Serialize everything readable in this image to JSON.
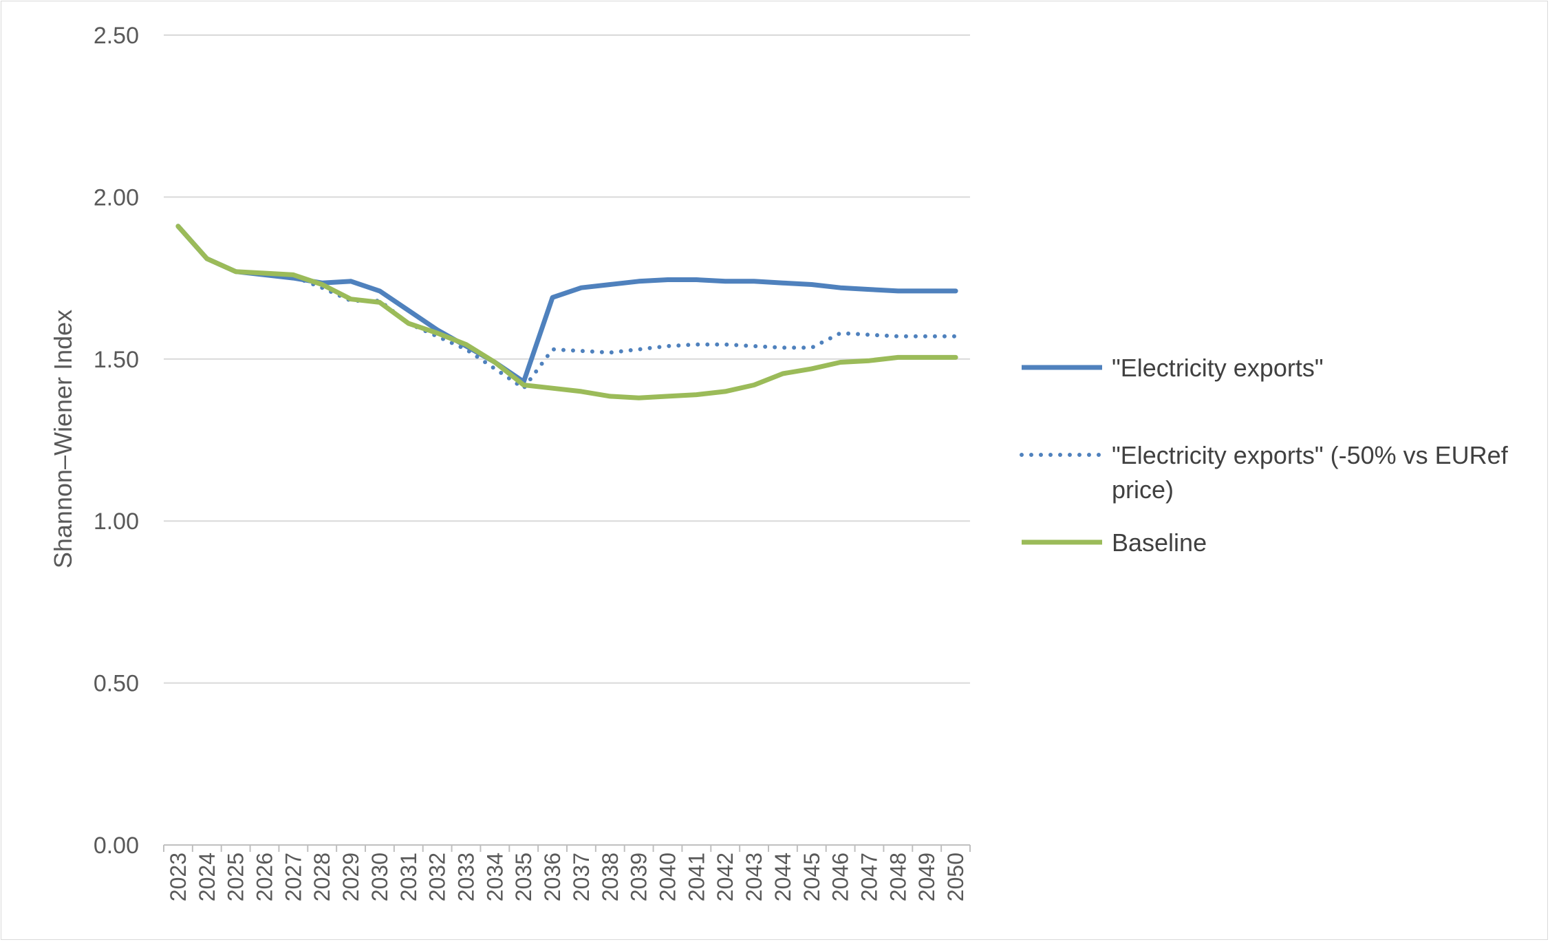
{
  "chart_data": {
    "type": "line",
    "title": "",
    "xlabel": "",
    "ylabel": "Shannon–Wiener Index",
    "ylim": [
      0,
      2.5
    ],
    "yticks": [
      "0.00",
      "0.50",
      "1.00",
      "1.50",
      "2.00",
      "2.50"
    ],
    "grid": "horizontal",
    "legend_position": "right",
    "x": [
      "2023",
      "2024",
      "2025",
      "2026",
      "2027",
      "2028",
      "2029",
      "2030",
      "2031",
      "2032",
      "2033",
      "2034",
      "2035",
      "2036",
      "2037",
      "2038",
      "2039",
      "2040",
      "2041",
      "2042",
      "2043",
      "2044",
      "2045",
      "2046",
      "2047",
      "2048",
      "2049",
      "2050"
    ],
    "series": [
      {
        "name": "\"Electricity exports\"",
        "legend_lines": [
          "\"Electricity exports\""
        ],
        "color": "#4f81bd",
        "style": "solid",
        "values": [
          1.91,
          1.81,
          1.77,
          1.76,
          1.75,
          1.735,
          1.74,
          1.71,
          1.65,
          1.59,
          1.54,
          1.49,
          1.43,
          1.69,
          1.72,
          1.73,
          1.74,
          1.745,
          1.745,
          1.74,
          1.74,
          1.735,
          1.73,
          1.72,
          1.715,
          1.71,
          1.71,
          1.71
        ]
      },
      {
        "name": "\"Electricity exports\" (-50% vs EURef price)",
        "legend_lines": [
          "\"Electricity exports\" (-50% vs EURef",
          "price)"
        ],
        "color": "#4f81bd",
        "style": "dotted",
        "values": [
          1.91,
          1.81,
          1.77,
          1.76,
          1.755,
          1.72,
          1.68,
          1.68,
          1.61,
          1.57,
          1.53,
          1.47,
          1.41,
          1.53,
          1.525,
          1.52,
          1.53,
          1.54,
          1.545,
          1.545,
          1.54,
          1.535,
          1.535,
          1.58,
          1.575,
          1.57,
          1.57,
          1.57
        ]
      },
      {
        "name": "Baseline",
        "legend_lines": [
          "Baseline"
        ],
        "color": "#9bbb59",
        "style": "solid",
        "values": [
          1.91,
          1.81,
          1.77,
          1.765,
          1.76,
          1.73,
          1.685,
          1.675,
          1.61,
          1.58,
          1.545,
          1.49,
          1.42,
          1.41,
          1.4,
          1.385,
          1.38,
          1.385,
          1.39,
          1.4,
          1.42,
          1.455,
          1.47,
          1.49,
          1.495,
          1.505,
          1.505,
          1.505
        ]
      }
    ]
  }
}
